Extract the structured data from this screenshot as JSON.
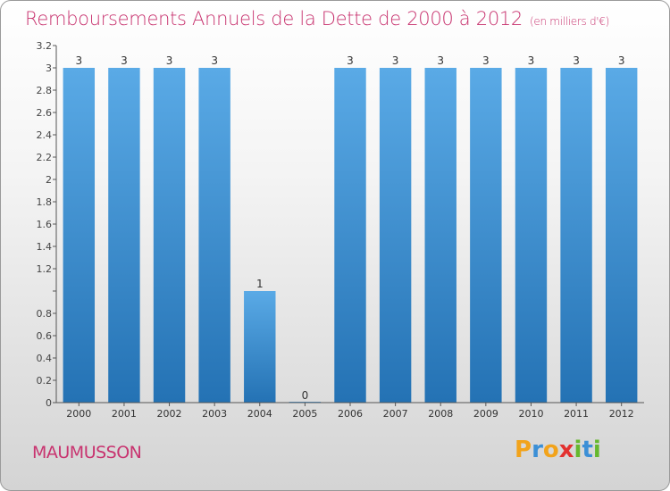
{
  "header": {
    "title": "Remboursements Annuels de la Dette de 2000 à 2012",
    "subtitle": "(en milliers d'€)"
  },
  "footer": {
    "commune": "MAUMUSSON",
    "logo_text": "Proxiti"
  },
  "colors": {
    "bar": "#2e82c6",
    "title": "#c8336f",
    "axis": "#555555"
  },
  "chart_data": {
    "type": "bar",
    "categories": [
      "2000",
      "2001",
      "2002",
      "2003",
      "2004",
      "2005",
      "2006",
      "2007",
      "2008",
      "2009",
      "2010",
      "2011",
      "2012"
    ],
    "values": [
      3,
      3,
      3,
      3,
      1,
      0,
      3,
      3,
      3,
      3,
      3,
      3,
      3
    ],
    "data_labels": [
      "3",
      "3",
      "3",
      "3",
      "1",
      "0",
      "3",
      "3",
      "3",
      "3",
      "3",
      "3",
      "3"
    ],
    "ylim": [
      0,
      3.2
    ],
    "yticks": [
      0,
      0.2,
      0.4,
      0.6,
      0.8,
      1,
      1.2,
      1.4,
      1.6,
      1.8,
      2,
      2.2,
      2.4,
      2.6,
      2.8,
      3,
      3.2
    ],
    "ytick_labels": [
      "0",
      "0.2",
      "0.4",
      "0.6",
      "0.8",
      "",
      "1.2",
      "1.4",
      "1.6",
      "1.8",
      "2",
      "2.2",
      "2.4",
      "2.6",
      "2.8",
      "3",
      "3.2"
    ],
    "grid": false,
    "legend": "none"
  }
}
